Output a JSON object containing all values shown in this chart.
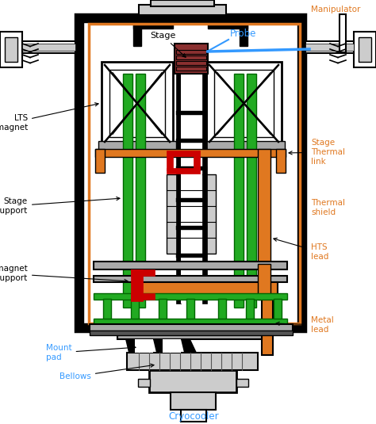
{
  "figsize": [
    4.74,
    5.35
  ],
  "dpi": 100,
  "labels": {
    "manipulator": "Manipulator",
    "stage": "Stage",
    "probe": "Probe",
    "lts_magnet": "LTS\nmagnet",
    "stage_support": "Stage\nsupport",
    "lts_magnet_support": "LTS magnet\nsupport",
    "stage_thermal_link": "Stage\nThermal\nlink",
    "thermal_shield": "Thermal\nshield",
    "hts_lead": "HTS\nlead",
    "metal_lead": "Metal\nlead",
    "mount_pad": "Mount\npad",
    "bellows": "Bellows",
    "cryocooler": "Cryocooler"
  },
  "colors": {
    "black": "#000000",
    "white": "#ffffff",
    "green": "#22aa22",
    "dark_green": "#006600",
    "red": "#cc0000",
    "orange": "#e07820",
    "blue": "#3399ff",
    "brown_red": "#8B3030",
    "light_gray": "#cccccc",
    "silver": "#aaaaaa",
    "dark_gray": "#555555",
    "mid_gray": "#999999",
    "label_orange": "#e07820",
    "label_blue": "#3399ff",
    "label_black": "#000000",
    "bg": "#ffffff"
  }
}
